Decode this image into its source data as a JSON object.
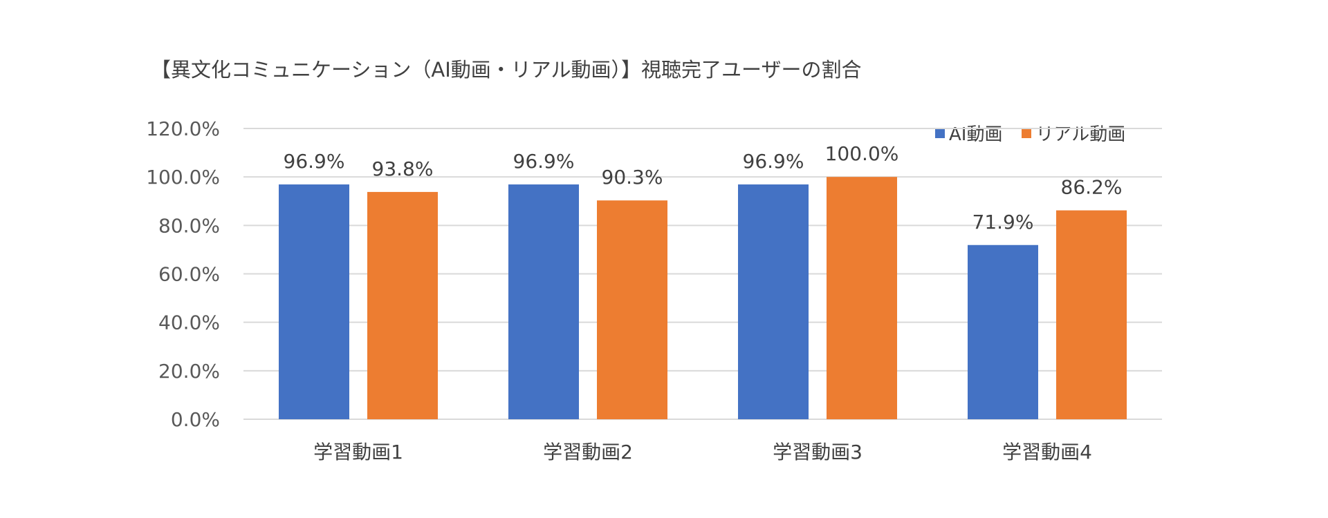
{
  "chart_data": {
    "type": "bar",
    "title": "【異文化コミュニケーション（AI動画・リアル動画）】視聴完了ユーザーの割合",
    "categories": [
      "学習動画1",
      "学習動画2",
      "学習動画3",
      "学習動画4"
    ],
    "series": [
      {
        "name": "AI動画",
        "color": "#4472C4",
        "values": [
          96.9,
          96.9,
          96.9,
          71.9
        ],
        "labels": [
          "96.9%",
          "96.9%",
          "96.9%",
          "71.9%"
        ]
      },
      {
        "name": "リアル動画",
        "color": "#ED7D31",
        "values": [
          93.8,
          90.3,
          100.0,
          86.2
        ],
        "labels": [
          "93.8%",
          "90.3%",
          "100.0%",
          "86.2%"
        ]
      }
    ],
    "ylim": [
      0,
      120
    ],
    "yticks": [
      "0.0%",
      "20.0%",
      "40.0%",
      "60.0%",
      "80.0%",
      "100.0%",
      "120.0%"
    ],
    "grid": true,
    "legend_position": "top-right"
  }
}
